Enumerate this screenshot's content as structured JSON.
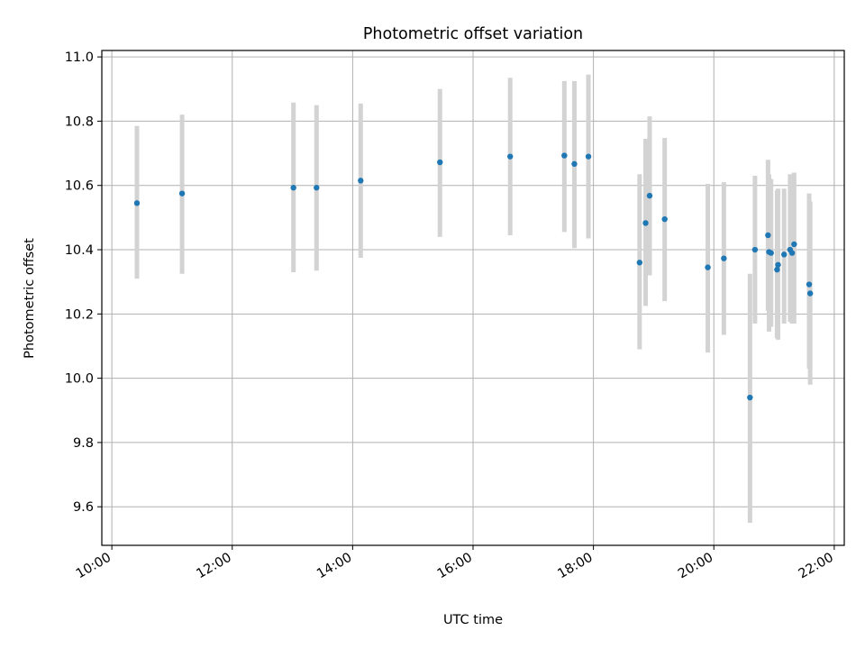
{
  "chart_data": {
    "type": "scatter",
    "title": "Photometric offset variation",
    "xlabel": "UTC time",
    "ylabel": "Photometric offset",
    "x_axis_type": "time",
    "xlim": [
      "09:50",
      "22:10"
    ],
    "ylim": [
      9.48,
      11.02
    ],
    "x_ticks": [
      "10:00",
      "12:00",
      "14:00",
      "16:00",
      "18:00",
      "20:00",
      "22:00"
    ],
    "y_ticks": [
      "9.6",
      "9.8",
      "10.0",
      "10.2",
      "10.4",
      "10.6",
      "10.8",
      "11.0"
    ],
    "grid": true,
    "legend": "none",
    "colors": {
      "point": "#1f77b4",
      "errorbar": "#d3d3d3",
      "grid": "#b0b0b0"
    },
    "series": [
      {
        "points": [
          {
            "x": "10:25",
            "y": 10.545,
            "lo": 10.31,
            "hi": 10.785
          },
          {
            "x": "11:10",
            "y": 10.575,
            "lo": 10.325,
            "hi": 10.82
          },
          {
            "x": "13:01",
            "y": 10.593,
            "lo": 10.33,
            "hi": 10.858
          },
          {
            "x": "13:24",
            "y": 10.593,
            "lo": 10.335,
            "hi": 10.85
          },
          {
            "x": "14:08",
            "y": 10.615,
            "lo": 10.375,
            "hi": 10.855
          },
          {
            "x": "15:27",
            "y": 10.672,
            "lo": 10.44,
            "hi": 10.9
          },
          {
            "x": "16:37",
            "y": 10.69,
            "lo": 10.445,
            "hi": 10.935
          },
          {
            "x": "17:31",
            "y": 10.693,
            "lo": 10.455,
            "hi": 10.925
          },
          {
            "x": "17:41",
            "y": 10.667,
            "lo": 10.405,
            "hi": 10.925
          },
          {
            "x": "17:55",
            "y": 10.69,
            "lo": 10.435,
            "hi": 10.945
          },
          {
            "x": "18:46",
            "y": 10.36,
            "lo": 10.09,
            "hi": 10.635
          },
          {
            "x": "18:52",
            "y": 10.483,
            "lo": 10.225,
            "hi": 10.745
          },
          {
            "x": "18:56",
            "y": 10.568,
            "lo": 10.32,
            "hi": 10.815
          },
          {
            "x": "19:11",
            "y": 10.495,
            "lo": 10.24,
            "hi": 10.748
          },
          {
            "x": "19:54",
            "y": 10.345,
            "lo": 10.08,
            "hi": 10.605
          },
          {
            "x": "20:10",
            "y": 10.373,
            "lo": 10.135,
            "hi": 10.61
          },
          {
            "x": "20:36",
            "y": 9.94,
            "lo": 9.55,
            "hi": 10.325
          },
          {
            "x": "20:41",
            "y": 10.4,
            "lo": 10.17,
            "hi": 10.63
          },
          {
            "x": "20:54",
            "y": 10.445,
            "lo": 10.21,
            "hi": 10.68
          },
          {
            "x": "20:55",
            "y": 10.393,
            "lo": 10.145,
            "hi": 10.635
          },
          {
            "x": "20:57",
            "y": 10.39,
            "lo": 10.16,
            "hi": 10.62
          },
          {
            "x": "21:03",
            "y": 10.338,
            "lo": 10.125,
            "hi": 10.585
          },
          {
            "x": "21:04",
            "y": 10.353,
            "lo": 10.12,
            "hi": 10.59
          },
          {
            "x": "21:10",
            "y": 10.385,
            "lo": 10.17,
            "hi": 10.59
          },
          {
            "x": "21:16",
            "y": 10.4,
            "lo": 10.175,
            "hi": 10.635
          },
          {
            "x": "21:18",
            "y": 10.39,
            "lo": 10.17,
            "hi": 10.625
          },
          {
            "x": "21:20",
            "y": 10.417,
            "lo": 10.17,
            "hi": 10.64
          },
          {
            "x": "21:35",
            "y": 10.292,
            "lo": 10.03,
            "hi": 10.575
          },
          {
            "x": "21:36",
            "y": 10.264,
            "lo": 9.98,
            "hi": 10.55
          }
        ]
      }
    ]
  }
}
